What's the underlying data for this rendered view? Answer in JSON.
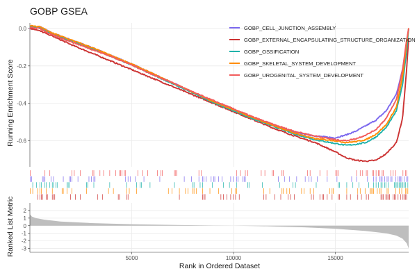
{
  "chart_data": {
    "type": "line",
    "title": "GOBP GSEA",
    "top_panel": {
      "ylabel": "Running Enrichment Score",
      "ylim": [
        -0.74,
        0.03
      ],
      "yticks": [
        0.0,
        -0.2,
        -0.4,
        -0.6
      ],
      "ytick_labels": [
        "0.0",
        "-0.2",
        "-0.4",
        "-0.6"
      ],
      "legend_position": "top-right"
    },
    "x": {
      "label": "Rank in Ordered Dataset",
      "lim": [
        0,
        18600
      ],
      "ticks": [
        5000,
        10000,
        15000
      ],
      "tick_labels": [
        "5000",
        "10000",
        "15000"
      ]
    },
    "series": [
      {
        "name": "GOBP_CELL_JUNCTION_ASSEMBLY",
        "color": "#7b68ee",
        "points": [
          [
            0,
            0.0
          ],
          [
            500,
            0.01
          ],
          [
            1000,
            -0.02
          ],
          [
            2000,
            -0.06
          ],
          [
            3000,
            -0.1
          ],
          [
            4000,
            -0.145
          ],
          [
            5000,
            -0.19
          ],
          [
            6000,
            -0.24
          ],
          [
            7000,
            -0.29
          ],
          [
            8000,
            -0.34
          ],
          [
            9000,
            -0.39
          ],
          [
            10000,
            -0.44
          ],
          [
            11000,
            -0.48
          ],
          [
            12000,
            -0.52
          ],
          [
            13000,
            -0.555
          ],
          [
            14000,
            -0.575
          ],
          [
            15000,
            -0.585
          ],
          [
            15500,
            -0.57
          ],
          [
            16000,
            -0.55
          ],
          [
            16500,
            -0.52
          ],
          [
            17000,
            -0.49
          ],
          [
            17500,
            -0.44
          ],
          [
            18000,
            -0.35
          ],
          [
            18300,
            -0.22
          ],
          [
            18500,
            -0.08
          ],
          [
            18600,
            0.0
          ]
        ]
      },
      {
        "name": "GOBP_EXTERNAL_ENCAPSULATING_STRUCTURE_ORGANIZATION",
        "color": "#cc3333",
        "points": [
          [
            0,
            0.0
          ],
          [
            300,
            -0.005
          ],
          [
            1000,
            -0.035
          ],
          [
            2000,
            -0.085
          ],
          [
            3000,
            -0.13
          ],
          [
            4000,
            -0.175
          ],
          [
            5000,
            -0.22
          ],
          [
            6000,
            -0.265
          ],
          [
            7000,
            -0.31
          ],
          [
            8000,
            -0.355
          ],
          [
            9000,
            -0.4
          ],
          [
            10000,
            -0.445
          ],
          [
            11000,
            -0.49
          ],
          [
            12000,
            -0.535
          ],
          [
            13000,
            -0.575
          ],
          [
            14000,
            -0.61
          ],
          [
            15000,
            -0.66
          ],
          [
            15500,
            -0.69
          ],
          [
            16000,
            -0.705
          ],
          [
            16500,
            -0.71
          ],
          [
            17000,
            -0.705
          ],
          [
            17500,
            -0.67
          ],
          [
            18000,
            -0.61
          ],
          [
            18300,
            -0.48
          ],
          [
            18500,
            -0.22
          ],
          [
            18600,
            -0.05
          ]
        ]
      },
      {
        "name": "GOBP_OSSIFICATION",
        "color": "#20b2aa",
        "points": [
          [
            0,
            0.01
          ],
          [
            500,
            0.005
          ],
          [
            1000,
            -0.025
          ],
          [
            2000,
            -0.065
          ],
          [
            3000,
            -0.105
          ],
          [
            4000,
            -0.15
          ],
          [
            5000,
            -0.195
          ],
          [
            6000,
            -0.245
          ],
          [
            7000,
            -0.295
          ],
          [
            8000,
            -0.345
          ],
          [
            9000,
            -0.395
          ],
          [
            10000,
            -0.44
          ],
          [
            11000,
            -0.485
          ],
          [
            12000,
            -0.525
          ],
          [
            13000,
            -0.565
          ],
          [
            14000,
            -0.595
          ],
          [
            15000,
            -0.615
          ],
          [
            15500,
            -0.625
          ],
          [
            16000,
            -0.62
          ],
          [
            16500,
            -0.61
          ],
          [
            17000,
            -0.58
          ],
          [
            17500,
            -0.53
          ],
          [
            18000,
            -0.44
          ],
          [
            18300,
            -0.3
          ],
          [
            18500,
            -0.12
          ],
          [
            18600,
            0.0
          ]
        ]
      },
      {
        "name": "GOBP_SKELETAL_SYSTEM_DEVELOPMENT",
        "color": "#ff8c00",
        "points": [
          [
            0,
            0.015
          ],
          [
            500,
            0.01
          ],
          [
            1000,
            -0.02
          ],
          [
            2000,
            -0.06
          ],
          [
            3000,
            -0.1
          ],
          [
            4000,
            -0.145
          ],
          [
            5000,
            -0.19
          ],
          [
            6000,
            -0.24
          ],
          [
            7000,
            -0.29
          ],
          [
            8000,
            -0.34
          ],
          [
            9000,
            -0.39
          ],
          [
            10000,
            -0.435
          ],
          [
            11000,
            -0.48
          ],
          [
            12000,
            -0.52
          ],
          [
            13000,
            -0.56
          ],
          [
            14000,
            -0.59
          ],
          [
            15000,
            -0.6
          ],
          [
            15500,
            -0.61
          ],
          [
            16000,
            -0.605
          ],
          [
            16500,
            -0.595
          ],
          [
            17000,
            -0.565
          ],
          [
            17500,
            -0.515
          ],
          [
            18000,
            -0.42
          ],
          [
            18300,
            -0.26
          ],
          [
            18500,
            -0.08
          ],
          [
            18600,
            0.0
          ]
        ]
      },
      {
        "name": "GOBP_UROGENITAL_SYSTEM_DEVELOPMENT",
        "color": "#f25c5c",
        "points": [
          [
            0,
            0.005
          ],
          [
            500,
            0.0
          ],
          [
            1000,
            -0.03
          ],
          [
            2000,
            -0.07
          ],
          [
            3000,
            -0.11
          ],
          [
            4000,
            -0.15
          ],
          [
            5000,
            -0.195
          ],
          [
            6000,
            -0.245
          ],
          [
            7000,
            -0.29
          ],
          [
            8000,
            -0.34
          ],
          [
            9000,
            -0.385
          ],
          [
            10000,
            -0.43
          ],
          [
            11000,
            -0.475
          ],
          [
            12000,
            -0.515
          ],
          [
            13000,
            -0.55
          ],
          [
            14000,
            -0.575
          ],
          [
            15000,
            -0.595
          ],
          [
            15500,
            -0.6
          ],
          [
            16000,
            -0.59
          ],
          [
            16500,
            -0.57
          ],
          [
            17000,
            -0.54
          ],
          [
            17500,
            -0.48
          ],
          [
            18000,
            -0.38
          ],
          [
            18300,
            -0.22
          ],
          [
            18500,
            -0.06
          ],
          [
            18600,
            0.0
          ]
        ]
      }
    ],
    "bottom_panel": {
      "ylabel": "Ranked List Metric",
      "ylim": [
        -3.5,
        3.0
      ],
      "yticks": [
        2,
        1,
        0,
        -1,
        -2,
        -3
      ],
      "ytick_labels": [
        "2",
        "1",
        "0",
        "-1",
        "-2",
        "-3"
      ],
      "type": "area",
      "fill_color": "#bebebe",
      "metric_profile": [
        [
          0,
          1.5
        ],
        [
          100,
          1.2
        ],
        [
          300,
          1.0
        ],
        [
          700,
          0.8
        ],
        [
          1500,
          0.55
        ],
        [
          3000,
          0.35
        ],
        [
          5000,
          0.2
        ],
        [
          7000,
          0.1
        ],
        [
          9000,
          0.03
        ],
        [
          10000,
          0.0
        ],
        [
          11000,
          -0.04
        ],
        [
          12000,
          -0.1
        ],
        [
          13500,
          -0.22
        ],
        [
          15000,
          -0.4
        ],
        [
          16500,
          -0.7
        ],
        [
          17500,
          -1.0
        ],
        [
          18000,
          -1.3
        ],
        [
          18300,
          -1.7
        ],
        [
          18500,
          -2.3
        ],
        [
          18600,
          -3.0
        ]
      ]
    }
  }
}
